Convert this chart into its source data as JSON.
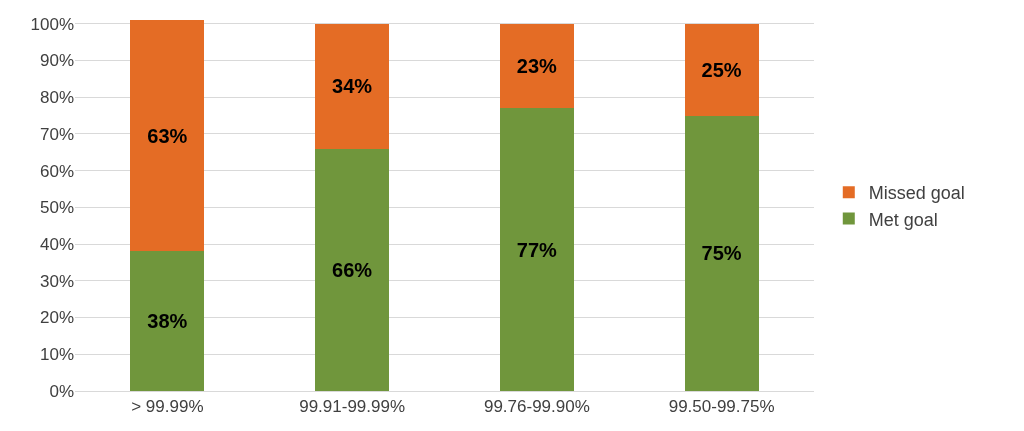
{
  "chart_data": {
    "type": "bar",
    "stacked": true,
    "categories": [
      "> 99.99%",
      "99.91-99.99%",
      "99.76-99.90%",
      "99.50-99.75%"
    ],
    "series": [
      {
        "name": "Met goal",
        "color": "#70963c",
        "values": [
          38,
          66,
          77,
          75
        ],
        "value_labels": [
          "38%",
          "66%",
          "77%",
          "75%"
        ]
      },
      {
        "name": "Missed goal",
        "color": "#e46c25",
        "values": [
          63,
          34,
          23,
          25
        ],
        "value_labels": [
          "63%",
          "34%",
          "23%",
          "25%"
        ]
      }
    ],
    "ylim": [
      0,
      101
    ],
    "yticks": [
      {
        "value": 0,
        "label": "0%"
      },
      {
        "value": 10,
        "label": "10%"
      },
      {
        "value": 20,
        "label": "20%"
      },
      {
        "value": 30,
        "label": "30%"
      },
      {
        "value": 40,
        "label": "40%"
      },
      {
        "value": 50,
        "label": "50%"
      },
      {
        "value": 60,
        "label": "60%"
      },
      {
        "value": 70,
        "label": "70%"
      },
      {
        "value": 80,
        "label": "80%"
      },
      {
        "value": 90,
        "label": "90%"
      },
      {
        "value": 100,
        "label": "100%"
      }
    ],
    "grid": "y",
    "legend": "right"
  }
}
